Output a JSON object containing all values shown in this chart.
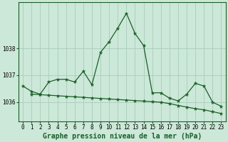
{
  "bg_color": "#cce8d8",
  "grid_color": "#aaccbb",
  "line_color": "#1a5e28",
  "x_ticks": [
    0,
    1,
    2,
    3,
    4,
    5,
    6,
    7,
    8,
    9,
    10,
    11,
    12,
    13,
    14,
    15,
    16,
    17,
    18,
    19,
    20,
    21,
    22,
    23
  ],
  "ylim": [
    1035.3,
    1039.7
  ],
  "yticks": [
    1036,
    1037,
    1038
  ],
  "ytick_top_label": "1038",
  "series1_x": [
    0,
    1,
    2,
    3,
    4,
    5,
    6,
    7,
    8,
    9,
    10,
    11,
    12,
    13,
    14,
    15,
    16,
    17,
    18,
    19,
    20,
    21,
    22,
    23
  ],
  "series1_y": [
    1036.6,
    1036.4,
    1036.3,
    1036.75,
    1036.85,
    1036.85,
    1036.75,
    1037.15,
    1036.65,
    1037.85,
    1038.25,
    1038.75,
    1039.3,
    1038.55,
    1038.1,
    1036.35,
    1036.35,
    1036.15,
    1036.05,
    1036.3,
    1036.7,
    1036.6,
    1036.0,
    1035.85
  ],
  "series2_x": [
    1,
    2,
    3,
    4,
    5,
    6,
    7,
    8,
    9,
    10,
    11,
    12,
    13,
    14,
    15,
    16,
    17,
    18,
    19,
    20,
    21,
    22,
    23
  ],
  "series2_y": [
    1036.3,
    1036.28,
    1036.26,
    1036.24,
    1036.22,
    1036.2,
    1036.18,
    1036.16,
    1036.14,
    1036.12,
    1036.1,
    1036.08,
    1036.06,
    1036.04,
    1036.02,
    1036.0,
    1035.95,
    1035.88,
    1035.82,
    1035.76,
    1035.72,
    1035.65,
    1035.58
  ],
  "xlabel": "Graphe pression niveau de la mer (hPa)",
  "xlabel_fontsize": 7,
  "tick_fontsize": 5.5
}
